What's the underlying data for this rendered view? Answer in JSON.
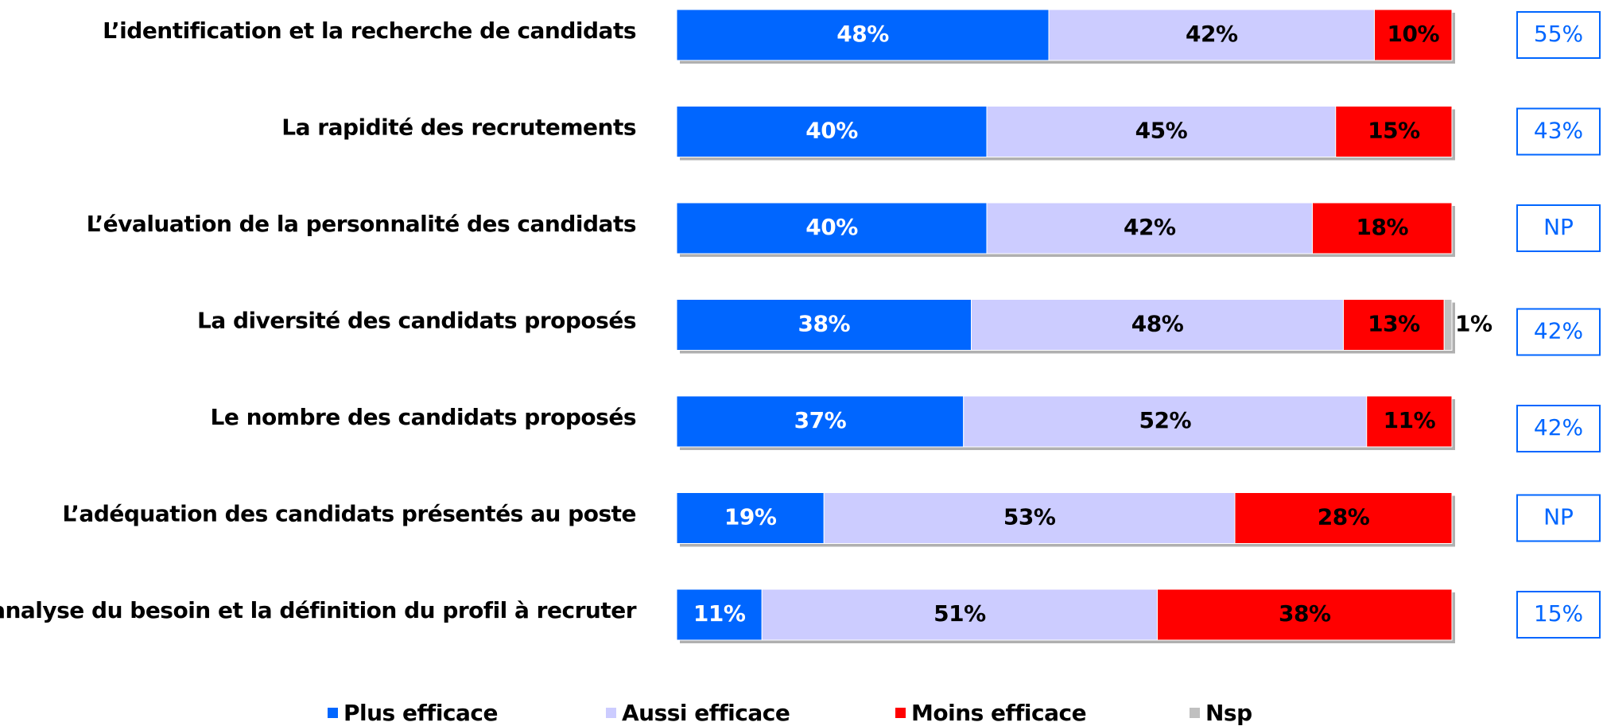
{
  "chart_data": {
    "type": "stacked-bar-horizontal",
    "categories": [
      "L’identification et la recherche de candidats",
      "La rapidité des recrutements",
      "L’évaluation de la personnalité des candidats",
      "La diversité des candidats proposés",
      "Le nombre des candidats proposés",
      "L’adéquation des candidats présentés au poste",
      "L’analyse du besoin et la définition du profil à recruter"
    ],
    "xlim": [
      0,
      100
    ],
    "series": [
      {
        "name": "Plus efficace",
        "color": "#0066ff",
        "values": [
          48,
          40,
          40,
          38,
          37,
          19,
          11
        ],
        "value_labels": [
          "48%",
          "40%",
          "40%",
          "38%",
          "37%",
          "19%",
          "11%"
        ]
      },
      {
        "name": "Aussi efficace",
        "color": "#ccccff",
        "values": [
          42,
          45,
          42,
          48,
          52,
          53,
          51
        ],
        "value_labels": [
          "42%",
          "45%",
          "42%",
          "48%",
          "52%",
          "53%",
          "51%"
        ]
      },
      {
        "name": "Moins efficace",
        "color": "#ff0000",
        "values": [
          10,
          15,
          18,
          13,
          11,
          28,
          38
        ],
        "value_labels": [
          "10%",
          "15%",
          "18%",
          "13%",
          "11%",
          "28%",
          "38%"
        ]
      },
      {
        "name": "Nsp",
        "color": "#c0c0c0",
        "values": [
          0,
          0,
          0,
          1,
          0,
          0,
          0
        ],
        "value_labels": [
          null,
          null,
          null,
          "1%",
          null,
          null,
          null
        ]
      }
    ],
    "side_labels": [
      "55%",
      "43%",
      "NP",
      "42%",
      "42%",
      "NP",
      "15%"
    ]
  }
}
